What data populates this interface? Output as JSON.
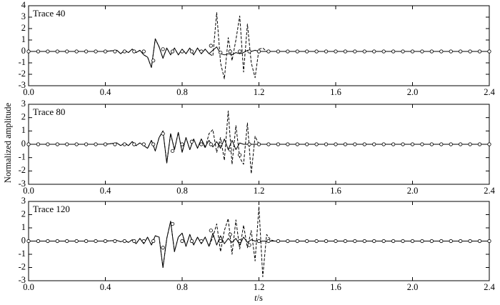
{
  "ylabel": "Normalized amplitude",
  "xlabel": [
    "t",
    "/s"
  ],
  "chart_data": [
    {
      "type": "line",
      "annotation": "Trace 40",
      "xlim": [
        0,
        2.4
      ],
      "xticks": [
        {
          "value": 0,
          "label": "0.0"
        },
        0.4,
        0.8,
        1.2,
        1.6,
        {
          "value": 2,
          "label": "2.0"
        },
        2.4
      ],
      "ylim": [
        -3,
        4
      ],
      "yticks": [
        -3,
        -2,
        -1,
        0,
        1,
        2,
        3,
        4
      ],
      "x": [
        0,
        0.2,
        0.4,
        0.46,
        0.48,
        0.5,
        0.52,
        0.54,
        0.56,
        0.58,
        0.6,
        0.62,
        0.64,
        0.66,
        0.68,
        0.7,
        0.72,
        0.74,
        0.76,
        0.78,
        0.8,
        0.82,
        0.84,
        0.86,
        0.88,
        0.9,
        0.92,
        0.94,
        0.96,
        0.98,
        1.0,
        1.02,
        1.04,
        1.06,
        1.08,
        1.1,
        1.12,
        1.14,
        1.16,
        1.18,
        1.2,
        1.22,
        1.24,
        1.26,
        1.28,
        1.3,
        1.4,
        1.6,
        1.8,
        2.0,
        2.2,
        2.4
      ],
      "series": [
        {
          "style": "solid",
          "color": "#000000",
          "values": [
            0,
            0,
            0,
            0.1,
            -0.2,
            0.1,
            -0.1,
            0.2,
            -0.1,
            0.1,
            -0.3,
            -0.5,
            -1.4,
            1.1,
            0.4,
            -0.6,
            0.3,
            -0.3,
            0.3,
            -0.3,
            0.2,
            -0.2,
            0.3,
            -0.3,
            0.3,
            -0.2,
            0.2,
            -0.2,
            0.1,
            0.4,
            -0.2,
            -0.3,
            -0.2,
            -0.3,
            -0.1,
            -0.2,
            -0.1,
            0.1,
            0,
            0.1,
            0,
            0,
            0,
            0,
            0,
            0,
            0,
            0,
            0,
            0,
            0,
            0
          ]
        },
        {
          "style": "dashed",
          "color": "#000000",
          "values": [
            0,
            0,
            0,
            0.1,
            -0.2,
            0.1,
            -0.1,
            0.2,
            -0.1,
            0.1,
            -0.3,
            -0.5,
            -1.4,
            1.1,
            0.4,
            -0.6,
            0.3,
            -0.3,
            0.3,
            -0.3,
            0.2,
            -0.2,
            0.3,
            -0.3,
            0.3,
            -0.2,
            0.2,
            -0.2,
            -0.4,
            3.4,
            -1.0,
            -2.4,
            1.2,
            -0.8,
            1.0,
            3.1,
            -1.8,
            2.4,
            -1.0,
            -2.3,
            0.2,
            0.3,
            0,
            0,
            0,
            0,
            0,
            0,
            0,
            0,
            0,
            0
          ]
        },
        {
          "style": "circles",
          "color": "#000000",
          "x": [
            0,
            0.05,
            0.1,
            0.15,
            0.2,
            0.25,
            0.3,
            0.35,
            0.4,
            0.45,
            0.5,
            0.55,
            0.6,
            0.65,
            0.7,
            0.75,
            0.8,
            0.85,
            0.9,
            0.95,
            1.0,
            1.05,
            1.1,
            1.15,
            1.2,
            1.25,
            1.3,
            1.35,
            1.4,
            1.45,
            1.5,
            1.55,
            1.6,
            1.65,
            1.7,
            1.75,
            1.8,
            1.85,
            1.9,
            1.95,
            2.0,
            2.05,
            2.1,
            2.15,
            2.2,
            2.25,
            2.3,
            2.35,
            2.4
          ],
          "values": [
            0,
            0,
            0,
            0,
            0,
            0,
            0,
            0,
            0,
            0,
            0,
            0,
            0,
            -0.8,
            0.2,
            0,
            0,
            0,
            0,
            0.5,
            -0.1,
            0,
            0,
            0,
            0,
            0,
            0,
            0,
            0,
            0,
            0,
            0,
            0,
            0,
            0,
            0,
            0,
            0,
            0,
            0,
            0,
            0,
            0,
            0,
            0,
            0,
            0,
            0,
            0
          ]
        }
      ]
    },
    {
      "type": "line",
      "annotation": "Trace 80",
      "xlim": [
        0,
        2.4
      ],
      "xticks": [
        {
          "value": 0,
          "label": "0.0"
        },
        0.4,
        0.8,
        1.2,
        1.6,
        {
          "value": 2,
          "label": "2.0"
        },
        2.4
      ],
      "ylim": [
        -3,
        3
      ],
      "yticks": [
        -3,
        -2,
        -1,
        0,
        1,
        2,
        3
      ],
      "x": [
        0,
        0.2,
        0.4,
        0.46,
        0.48,
        0.5,
        0.52,
        0.54,
        0.56,
        0.58,
        0.6,
        0.62,
        0.64,
        0.66,
        0.68,
        0.7,
        0.72,
        0.74,
        0.76,
        0.78,
        0.8,
        0.82,
        0.84,
        0.86,
        0.88,
        0.9,
        0.92,
        0.94,
        0.96,
        0.98,
        1.0,
        1.02,
        1.04,
        1.06,
        1.08,
        1.1,
        1.12,
        1.14,
        1.16,
        1.18,
        1.2,
        1.22,
        1.24,
        1.26,
        1.28,
        1.3,
        1.4,
        1.6,
        1.8,
        2.0,
        2.2,
        2.4
      ],
      "series": [
        {
          "style": "solid",
          "color": "#000000",
          "values": [
            0,
            0,
            0,
            0.1,
            -0.1,
            0.1,
            -0.1,
            0.2,
            -0.1,
            0.1,
            -0.1,
            -0.3,
            0.3,
            -0.5,
            0.5,
            1.0,
            -1.4,
            0.8,
            -0.4,
            0.9,
            -0.6,
            0.5,
            -0.4,
            0.4,
            -0.3,
            0.4,
            -0.2,
            0.3,
            -0.2,
            0.2,
            -0.3,
            0.4,
            -0.4,
            0.3,
            -0.4,
            0.1,
            0,
            0,
            0,
            0,
            0,
            0,
            0,
            0,
            0,
            0,
            0,
            0,
            0,
            0,
            0,
            0
          ]
        },
        {
          "style": "dashed",
          "color": "#000000",
          "values": [
            0,
            0,
            0,
            0.1,
            -0.1,
            0.1,
            -0.1,
            0.2,
            -0.1,
            0.1,
            -0.1,
            -0.3,
            0.3,
            -0.5,
            0.5,
            1.0,
            -1.4,
            0.8,
            -0.4,
            0.9,
            -0.6,
            0.5,
            -0.4,
            0.4,
            -0.3,
            0.4,
            -0.3,
            0.8,
            1.1,
            -0.6,
            0.5,
            -1.2,
            2.5,
            -1.5,
            1.4,
            -1.0,
            -1.5,
            1.6,
            -2.2,
            0.6,
            0,
            0,
            0,
            0,
            0,
            0,
            0,
            0,
            0,
            0,
            0,
            0
          ]
        },
        {
          "style": "circles",
          "color": "#000000",
          "x": [
            0,
            0.05,
            0.1,
            0.15,
            0.2,
            0.25,
            0.3,
            0.35,
            0.4,
            0.45,
            0.5,
            0.55,
            0.6,
            0.65,
            0.7,
            0.75,
            0.8,
            0.85,
            0.9,
            0.95,
            1.0,
            1.05,
            1.1,
            1.15,
            1.2,
            1.25,
            1.3,
            1.35,
            1.4,
            1.45,
            1.5,
            1.55,
            1.6,
            1.65,
            1.7,
            1.75,
            1.8,
            1.85,
            1.9,
            1.95,
            2.0,
            2.05,
            2.1,
            2.15,
            2.2,
            2.25,
            2.3,
            2.35,
            2.4
          ],
          "values": [
            0,
            0,
            0,
            0,
            0,
            0,
            0,
            0,
            0,
            0,
            0,
            0,
            0,
            0,
            0.8,
            -0.5,
            0,
            0.2,
            0,
            0,
            0,
            -0.4,
            -0.8,
            0,
            0,
            0,
            0,
            0,
            0,
            0,
            0,
            0,
            0,
            0,
            0,
            0,
            0,
            0,
            0,
            0,
            0,
            0,
            0,
            0,
            0,
            0,
            0,
            0,
            0
          ]
        }
      ]
    },
    {
      "type": "line",
      "annotation": "Trace 120",
      "xlim": [
        0,
        2.4
      ],
      "xticks": [
        {
          "value": 0,
          "label": "0.0"
        },
        0.4,
        0.8,
        1.2,
        1.6,
        {
          "value": 2,
          "label": "2.0"
        },
        2.4
      ],
      "ylim": [
        -3,
        3
      ],
      "yticks": [
        -3,
        -2,
        -1,
        0,
        1,
        2,
        3
      ],
      "x": [
        0,
        0.2,
        0.4,
        0.46,
        0.48,
        0.5,
        0.52,
        0.54,
        0.56,
        0.58,
        0.6,
        0.62,
        0.64,
        0.66,
        0.68,
        0.7,
        0.72,
        0.74,
        0.76,
        0.78,
        0.8,
        0.82,
        0.84,
        0.86,
        0.88,
        0.9,
        0.92,
        0.94,
        0.96,
        0.98,
        1.0,
        1.02,
        1.04,
        1.06,
        1.08,
        1.1,
        1.12,
        1.14,
        1.16,
        1.18,
        1.2,
        1.22,
        1.24,
        1.26,
        1.28,
        1.3,
        1.4,
        1.6,
        1.8,
        2.0,
        2.2,
        2.4
      ],
      "series": [
        {
          "style": "solid",
          "color": "#000000",
          "values": [
            0,
            0,
            0,
            0.05,
            -0.05,
            0.05,
            -0.1,
            0.1,
            -0.2,
            0.2,
            -0.2,
            0.3,
            -0.3,
            0.4,
            0.3,
            -2.0,
            0.2,
            1.5,
            -0.8,
            0.3,
            0.6,
            -0.4,
            0.5,
            -0.3,
            0.3,
            -0.2,
            0.3,
            -0.4,
            0.6,
            -0.3,
            0.4,
            -0.2,
            0.2,
            -0.1,
            0.2,
            -0.3,
            0.3,
            -0.1,
            0.1,
            0,
            0,
            0,
            0,
            0,
            0,
            0,
            0,
            0,
            0,
            0,
            0,
            0
          ]
        },
        {
          "style": "dashed",
          "color": "#000000",
          "values": [
            0,
            0,
            0,
            0.05,
            -0.05,
            0.05,
            -0.1,
            0.1,
            -0.2,
            0.2,
            -0.2,
            0.3,
            -0.3,
            0.4,
            0.3,
            -2.0,
            0.2,
            1.5,
            -0.8,
            0.3,
            0.6,
            -0.4,
            0.5,
            -0.3,
            0.3,
            -0.2,
            0.3,
            -0.4,
            0.3,
            1.3,
            -0.8,
            0.8,
            1.7,
            -1.0,
            1.6,
            -0.6,
            1.2,
            -0.5,
            0.8,
            -1.5,
            2.6,
            -2.7,
            0.5,
            0.1,
            0,
            0,
            0,
            0,
            0,
            0,
            0,
            0
          ]
        },
        {
          "style": "circles",
          "color": "#000000",
          "x": [
            0,
            0.05,
            0.1,
            0.15,
            0.2,
            0.25,
            0.3,
            0.35,
            0.4,
            0.45,
            0.5,
            0.55,
            0.6,
            0.65,
            0.7,
            0.75,
            0.8,
            0.85,
            0.9,
            0.95,
            1.0,
            1.05,
            1.1,
            1.15,
            1.2,
            1.25,
            1.3,
            1.35,
            1.4,
            1.45,
            1.5,
            1.55,
            1.6,
            1.65,
            1.7,
            1.75,
            1.8,
            1.85,
            1.9,
            1.95,
            2.0,
            2.05,
            2.1,
            2.15,
            2.2,
            2.25,
            2.3,
            2.35,
            2.4
          ],
          "values": [
            0,
            0,
            0,
            0,
            0,
            0,
            0,
            0,
            0,
            0,
            0,
            0,
            0,
            0,
            -0.5,
            1.3,
            0,
            0,
            0,
            0.8,
            0,
            0.5,
            0,
            -0.3,
            0,
            0,
            0,
            0,
            0,
            0,
            0,
            0,
            0,
            0,
            0,
            0,
            0,
            0,
            0,
            0,
            0,
            0,
            0,
            0,
            0,
            0,
            0,
            0,
            0
          ]
        }
      ]
    }
  ]
}
